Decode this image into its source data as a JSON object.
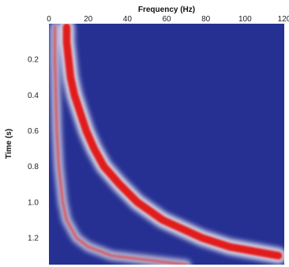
{
  "chart_data": {
    "type": "heatmap",
    "title": "",
    "xlabel": "Frequency (Hz)",
    "ylabel": "Time (s)",
    "xlim": [
      0,
      120
    ],
    "ylim": [
      0,
      1.35
    ],
    "x_axis_position": "top",
    "y_axis_inverted": true,
    "x_ticks": [
      0,
      20,
      40,
      60,
      80,
      100,
      120
    ],
    "y_ticks": [
      0.2,
      0.4,
      0.6,
      0.8,
      1.0,
      1.2
    ],
    "y_tick_labels": [
      "0.2",
      "0.4",
      "0.6",
      "0.8",
      "1.0",
      "1.2"
    ],
    "grid": false,
    "legend": "none",
    "colormap": {
      "background": "#263093",
      "peak": "#e01a1a",
      "mid": "#ffffff"
    },
    "series": [
      {
        "time": [
          0.02,
          0.1,
          0.2,
          0.3,
          0.4,
          0.5,
          0.6,
          0.7,
          0.8,
          0.9,
          1.0,
          1.1,
          1.2,
          1.25,
          1.3
        ],
        "frequency": [
          9,
          9,
          10,
          11,
          13,
          16,
          19,
          23,
          28,
          36,
          45,
          58,
          78,
          92,
          117
        ],
        "peak_amplitude": 1.0
      },
      {
        "time": [
          0.02,
          0.2,
          0.4,
          0.6,
          0.8,
          1.0,
          1.1,
          1.2,
          1.25,
          1.3,
          1.35
        ],
        "frequency": [
          3,
          3,
          3.5,
          4,
          5,
          7,
          9,
          14,
          20,
          32,
          70
        ],
        "peak_amplitude": 0.55
      }
    ]
  }
}
